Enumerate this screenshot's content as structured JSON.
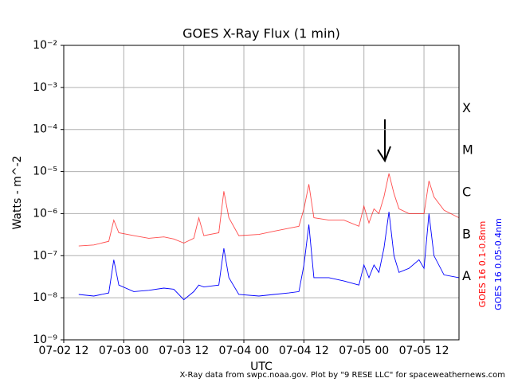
{
  "chart_data": {
    "type": "line",
    "title": "GOES X-Ray Flux (1 min)",
    "xlabel": "UTC",
    "ylabel": "Watts - m^-2",
    "footer": "X-Ray data from swpc.noaa.gov. Plot by \"9 RESE LLC\" for spaceweathernews.com",
    "log_y": true,
    "grid": true,
    "ylim": [
      1e-09,
      0.01
    ],
    "yticks": [
      {
        "value": 1e-09,
        "label": "10⁻⁹"
      },
      {
        "value": 1e-08,
        "label": "10⁻⁸"
      },
      {
        "value": 1e-07,
        "label": "10⁻⁷"
      },
      {
        "value": 1e-06,
        "label": "10⁻⁶"
      },
      {
        "value": 1e-05,
        "label": "10⁻⁵"
      },
      {
        "value": 0.0001,
        "label": "10⁻⁴"
      },
      {
        "value": 0.001,
        "label": "10⁻³"
      },
      {
        "value": 0.01,
        "label": "10⁻²"
      }
    ],
    "xlim": [
      "07-02 12",
      "07-05 19"
    ],
    "xticks": [
      "07-02 12",
      "07-03 00",
      "07-03 12",
      "07-04 00",
      "07-04 12",
      "07-05 00",
      "07-05 12"
    ],
    "flare_classes": [
      {
        "label": "A",
        "value": 1e-08
      },
      {
        "label": "B",
        "value": 1e-07
      },
      {
        "label": "C",
        "value": 1e-06
      },
      {
        "label": "M",
        "value": 1e-05
      },
      {
        "label": "X",
        "value": 0.0001
      }
    ],
    "x": [
      "07-02 15",
      "07-02 18",
      "07-02 21",
      "07-02 22",
      "07-02 23",
      "07-03 02",
      "07-03 05",
      "07-03 08",
      "07-03 10",
      "07-03 12",
      "07-03 14",
      "07-03 15",
      "07-03 16",
      "07-03 19",
      "07-03 20",
      "07-03 21",
      "07-03 23",
      "07-04 03",
      "07-04 06",
      "07-04 09",
      "07-04 11",
      "07-04 12",
      "07-04 13",
      "07-04 14",
      "07-04 17",
      "07-04 20",
      "07-04 23",
      "07-05 00",
      "07-05 01",
      "07-05 02",
      "07-05 03",
      "07-05 04",
      "07-05 05",
      "07-05 06",
      "07-05 07",
      "07-05 09",
      "07-05 11",
      "07-05 12",
      "07-05 13",
      "07-05 14",
      "07-05 16",
      "07-05 19"
    ],
    "series": [
      {
        "name": "GOES 16 0.1-0.8nm",
        "color": "#ff0000",
        "values": [
          1.7e-07,
          1.8e-07,
          2.2e-07,
          7e-07,
          3.5e-07,
          3e-07,
          2.6e-07,
          2.8e-07,
          2.5e-07,
          2e-07,
          2.6e-07,
          8e-07,
          3e-07,
          3.5e-07,
          3.4e-06,
          8e-07,
          3e-07,
          3.2e-07,
          3.8e-07,
          4.5e-07,
          5e-07,
          1.3e-06,
          5e-06,
          8e-07,
          7e-07,
          7e-07,
          5e-07,
          1.5e-06,
          6e-07,
          1.3e-06,
          1e-06,
          2.5e-06,
          9e-06,
          3e-06,
          1.3e-06,
          1e-06,
          1e-06,
          1e-06,
          6e-06,
          2.5e-06,
          1.2e-06,
          8e-07
        ]
      },
      {
        "name": "GOES 16 0.05-0.4nm",
        "color": "#0000ff",
        "values": [
          1.2e-08,
          1.1e-08,
          1.3e-08,
          8e-08,
          2e-08,
          1.4e-08,
          1.5e-08,
          1.7e-08,
          1.6e-08,
          9e-09,
          1.4e-08,
          2e-08,
          1.8e-08,
          2e-08,
          1.5e-07,
          3e-08,
          1.2e-08,
          1.1e-08,
          1.2e-08,
          1.3e-08,
          1.4e-08,
          6e-08,
          5.5e-07,
          3e-08,
          3e-08,
          2.5e-08,
          2e-08,
          6e-08,
          3e-08,
          6e-08,
          4e-08,
          1.5e-07,
          1.1e-06,
          1e-07,
          4e-08,
          5e-08,
          8e-08,
          5e-08,
          1e-06,
          1e-07,
          3.5e-08,
          3e-08
        ]
      }
    ]
  }
}
